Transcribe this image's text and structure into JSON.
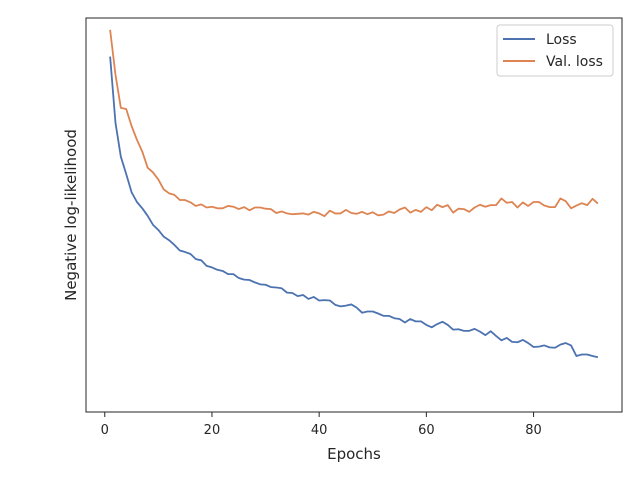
{
  "chart_data": {
    "type": "line",
    "title": "",
    "xlabel": "Epochs",
    "ylabel": "Negative log-likelihood",
    "xlim": [
      -3.5,
      96.5
    ],
    "ylim": [
      0.0,
      1.0
    ],
    "xticks": [
      0,
      20,
      40,
      60,
      80
    ],
    "y_tick_labels_shown": false,
    "grid": false,
    "legend_position": "top-right",
    "x": [
      1,
      2,
      3,
      4,
      5,
      6,
      7,
      8,
      9,
      10,
      11,
      12,
      13,
      14,
      15,
      16,
      17,
      18,
      19,
      20,
      21,
      22,
      23,
      24,
      25,
      26,
      27,
      28,
      29,
      30,
      31,
      32,
      33,
      34,
      35,
      36,
      37,
      38,
      39,
      40,
      41,
      42,
      43,
      44,
      45,
      46,
      47,
      48,
      49,
      50,
      51,
      52,
      53,
      54,
      55,
      56,
      57,
      58,
      59,
      60,
      61,
      62,
      63,
      64,
      65,
      66,
      67,
      68,
      69,
      70,
      71,
      72,
      73,
      74,
      75,
      76,
      77,
      78,
      79,
      80,
      81,
      82,
      83,
      84,
      85,
      86,
      87,
      88,
      89,
      90,
      91,
      92
    ],
    "series": [
      {
        "name": "Loss",
        "color": "#4c72b0",
        "values": [
          0.902,
          0.734,
          0.648,
          0.604,
          0.558,
          0.533,
          0.517,
          0.498,
          0.475,
          0.462,
          0.445,
          0.436,
          0.424,
          0.41,
          0.406,
          0.401,
          0.388,
          0.385,
          0.371,
          0.367,
          0.361,
          0.358,
          0.35,
          0.35,
          0.34,
          0.336,
          0.335,
          0.329,
          0.324,
          0.323,
          0.317,
          0.316,
          0.314,
          0.303,
          0.302,
          0.294,
          0.297,
          0.287,
          0.292,
          0.283,
          0.284,
          0.283,
          0.272,
          0.268,
          0.27,
          0.273,
          0.265,
          0.252,
          0.255,
          0.255,
          0.25,
          0.244,
          0.244,
          0.238,
          0.236,
          0.227,
          0.236,
          0.23,
          0.23,
          0.221,
          0.215,
          0.223,
          0.229,
          0.221,
          0.209,
          0.21,
          0.206,
          0.206,
          0.211,
          0.204,
          0.195,
          0.205,
          0.193,
          0.182,
          0.188,
          0.178,
          0.177,
          0.183,
          0.175,
          0.165,
          0.166,
          0.169,
          0.164,
          0.163,
          0.171,
          0.175,
          0.169,
          0.142,
          0.146,
          0.146,
          0.142,
          0.139
        ]
      },
      {
        "name": "Val. loss",
        "color": "#dd8452",
        "values": [
          0.97,
          0.856,
          0.772,
          0.769,
          0.726,
          0.691,
          0.661,
          0.62,
          0.608,
          0.59,
          0.565,
          0.555,
          0.551,
          0.538,
          0.538,
          0.532,
          0.523,
          0.527,
          0.519,
          0.521,
          0.517,
          0.517,
          0.523,
          0.521,
          0.515,
          0.52,
          0.512,
          0.519,
          0.519,
          0.516,
          0.515,
          0.505,
          0.509,
          0.504,
          0.502,
          0.503,
          0.504,
          0.501,
          0.508,
          0.504,
          0.497,
          0.511,
          0.504,
          0.504,
          0.513,
          0.505,
          0.503,
          0.508,
          0.502,
          0.507,
          0.499,
          0.501,
          0.509,
          0.505,
          0.514,
          0.519,
          0.506,
          0.513,
          0.508,
          0.52,
          0.512,
          0.526,
          0.52,
          0.525,
          0.506,
          0.516,
          0.515,
          0.508,
          0.519,
          0.526,
          0.521,
          0.525,
          0.525,
          0.542,
          0.531,
          0.533,
          0.519,
          0.532,
          0.523,
          0.533,
          0.533,
          0.524,
          0.52,
          0.52,
          0.542,
          0.535,
          0.517,
          0.524,
          0.53,
          0.525,
          0.541,
          0.529
        ]
      }
    ]
  }
}
